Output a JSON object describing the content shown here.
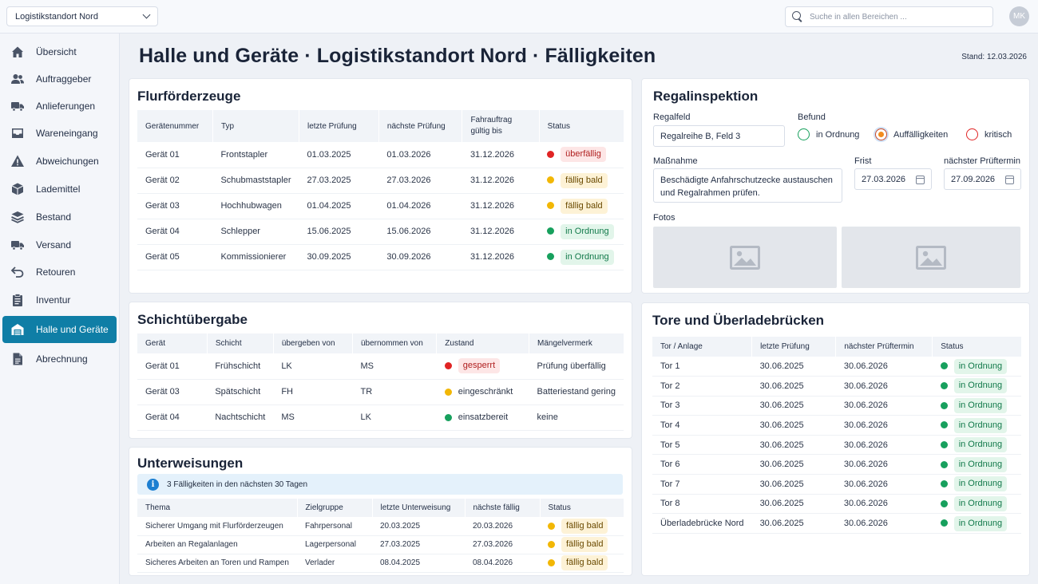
{
  "header": {
    "site_select": "Logistikstandort Nord",
    "search_placeholder": "Suche in allen Bereichen ...",
    "avatar_initials": "MK"
  },
  "sidebar": {
    "items": [
      {
        "label": "Übersicht",
        "icon": "home-icon"
      },
      {
        "label": "Auftraggeber",
        "icon": "users-icon"
      },
      {
        "label": "Anlieferungen",
        "icon": "truck-icon"
      },
      {
        "label": "Wareneingang",
        "icon": "inbox-icon"
      },
      {
        "label": "Abweichungen",
        "icon": "warning-icon"
      },
      {
        "label": "Lademittel",
        "icon": "box-icon"
      },
      {
        "label": "Bestand",
        "icon": "layers-icon"
      },
      {
        "label": "Versand",
        "icon": "truck-icon"
      },
      {
        "label": "Retouren",
        "icon": "return-icon"
      },
      {
        "label": "Inventur",
        "icon": "clipboard-icon"
      },
      {
        "label": "Halle und Geräte",
        "icon": "warehouse-icon",
        "active": true
      },
      {
        "label": "Abrechnung",
        "icon": "document-icon"
      }
    ]
  },
  "page": {
    "title": "Halle und Geräte · Logistikstandort Nord · Fälligkeiten",
    "stand": "Stand: 12.03.2026"
  },
  "flurfoerderzeuge": {
    "title": "Flurförderzeuge",
    "headers": [
      "Gerätenummer",
      "Typ",
      "letzte Prüfung",
      "nächste Prüfung",
      "Fahrauftrag gültig bis",
      "Status"
    ],
    "rows": [
      {
        "nr": "Gerät 01",
        "typ": "Frontstapler",
        "letzte": "01.03.2025",
        "naechste": "01.03.2026",
        "gueltig": "31.12.2026",
        "status": "überfällig",
        "level": "red"
      },
      {
        "nr": "Gerät 02",
        "typ": "Schubmaststapler",
        "letzte": "27.03.2025",
        "naechste": "27.03.2026",
        "gueltig": "31.12.2026",
        "status": "fällig bald",
        "level": "yel"
      },
      {
        "nr": "Gerät 03",
        "typ": "Hochhubwagen",
        "letzte": "01.04.2025",
        "naechste": "01.04.2026",
        "gueltig": "31.12.2026",
        "status": "fällig bald",
        "level": "yel"
      },
      {
        "nr": "Gerät 04",
        "typ": "Schlepper",
        "letzte": "15.06.2025",
        "naechste": "15.06.2026",
        "gueltig": "31.12.2026",
        "status": "in Ordnung",
        "level": "grn"
      },
      {
        "nr": "Gerät 05",
        "typ": "Kommissionierer",
        "letzte": "30.09.2025",
        "naechste": "30.09.2026",
        "gueltig": "31.12.2026",
        "status": "in Ordnung",
        "level": "grn"
      }
    ]
  },
  "schicht": {
    "title": "Schichtübergabe",
    "headers": [
      "Gerät",
      "Schicht",
      "übergeben von",
      "übernommen von",
      "Zustand",
      "Mängelvermerk"
    ],
    "rows": [
      {
        "geraet": "Gerät 01",
        "schicht": "Frühschicht",
        "von": "LK",
        "an": "MS",
        "zustand": "gesperrt",
        "level": "red",
        "pill": true,
        "vermerk": "Prüfung überfällig"
      },
      {
        "geraet": "Gerät 03",
        "schicht": "Spätschicht",
        "von": "FH",
        "an": "TR",
        "zustand": "eingeschränkt",
        "level": "yel",
        "pill": false,
        "vermerk": "Batteriestand gering"
      },
      {
        "geraet": "Gerät 04",
        "schicht": "Nachtschicht",
        "von": "MS",
        "an": "LK",
        "zustand": "einsatzbereit",
        "level": "grn",
        "pill": false,
        "vermerk": "keine"
      }
    ]
  },
  "unterweisungen": {
    "title": "Unterweisungen",
    "info": "3 Fälligkeiten in den nächsten 30 Tagen",
    "headers": [
      "Thema",
      "Zielgruppe",
      "letzte Unterweisung",
      "nächste fällig",
      "Status"
    ],
    "rows": [
      {
        "thema": "Sicherer Umgang mit Flurförderzeugen",
        "ziel": "Fahrpersonal",
        "letzte": "20.03.2025",
        "naechste": "20.03.2026",
        "status": "fällig bald"
      },
      {
        "thema": "Arbeiten an Regalanlagen",
        "ziel": "Lagerpersonal",
        "letzte": "27.03.2025",
        "naechste": "27.03.2026",
        "status": "fällig bald"
      },
      {
        "thema": "Sicheres Arbeiten an Toren und Rampen",
        "ziel": "Verlader",
        "letzte": "08.04.2025",
        "naechste": "08.04.2026",
        "status": "fällig bald"
      }
    ]
  },
  "regal": {
    "title": "Regalinspektion",
    "regalfeld_label": "Regalfeld",
    "regalfeld_value": "Regalreihe B, Feld 3",
    "befund_label": "Befund",
    "befund_options": [
      "in Ordnung",
      "Auffälligkeiten",
      "kritisch"
    ],
    "befund_selected": "Auffälligkeiten",
    "massnahme_label": "Maßnahme",
    "massnahme_value": "Beschädigte Anfahrschutzecke austauschen und Regalrahmen prüfen.",
    "frist_label": "Frist",
    "frist_value": "27.03.2026",
    "pruef_label": "nächster Prüftermin",
    "pruef_value": "27.09.2026",
    "fotos_label": "Fotos"
  },
  "tore": {
    "title": "Tore und Überladebrücken",
    "headers": [
      "Tor / Anlage",
      "letzte Prüfung",
      "nächster Prüftermin",
      "Status"
    ],
    "rows": [
      {
        "anlage": "Tor 1",
        "letzte": "30.06.2025",
        "naechste": "30.06.2026",
        "status": "in Ordnung"
      },
      {
        "anlage": "Tor 2",
        "letzte": "30.06.2025",
        "naechste": "30.06.2026",
        "status": "in Ordnung"
      },
      {
        "anlage": "Tor 3",
        "letzte": "30.06.2025",
        "naechste": "30.06.2026",
        "status": "in Ordnung"
      },
      {
        "anlage": "Tor 4",
        "letzte": "30.06.2025",
        "naechste": "30.06.2026",
        "status": "in Ordnung"
      },
      {
        "anlage": "Tor 5",
        "letzte": "30.06.2025",
        "naechste": "30.06.2026",
        "status": "in Ordnung"
      },
      {
        "anlage": "Tor 6",
        "letzte": "30.06.2025",
        "naechste": "30.06.2026",
        "status": "in Ordnung"
      },
      {
        "anlage": "Tor 7",
        "letzte": "30.06.2025",
        "naechste": "30.06.2026",
        "status": "in Ordnung"
      },
      {
        "anlage": "Tor 8",
        "letzte": "30.06.2025",
        "naechste": "30.06.2026",
        "status": "in Ordnung"
      },
      {
        "anlage": "Überladebrücke Nord",
        "letzte": "30.06.2025",
        "naechste": "30.06.2026",
        "status": "in Ordnung"
      }
    ]
  }
}
